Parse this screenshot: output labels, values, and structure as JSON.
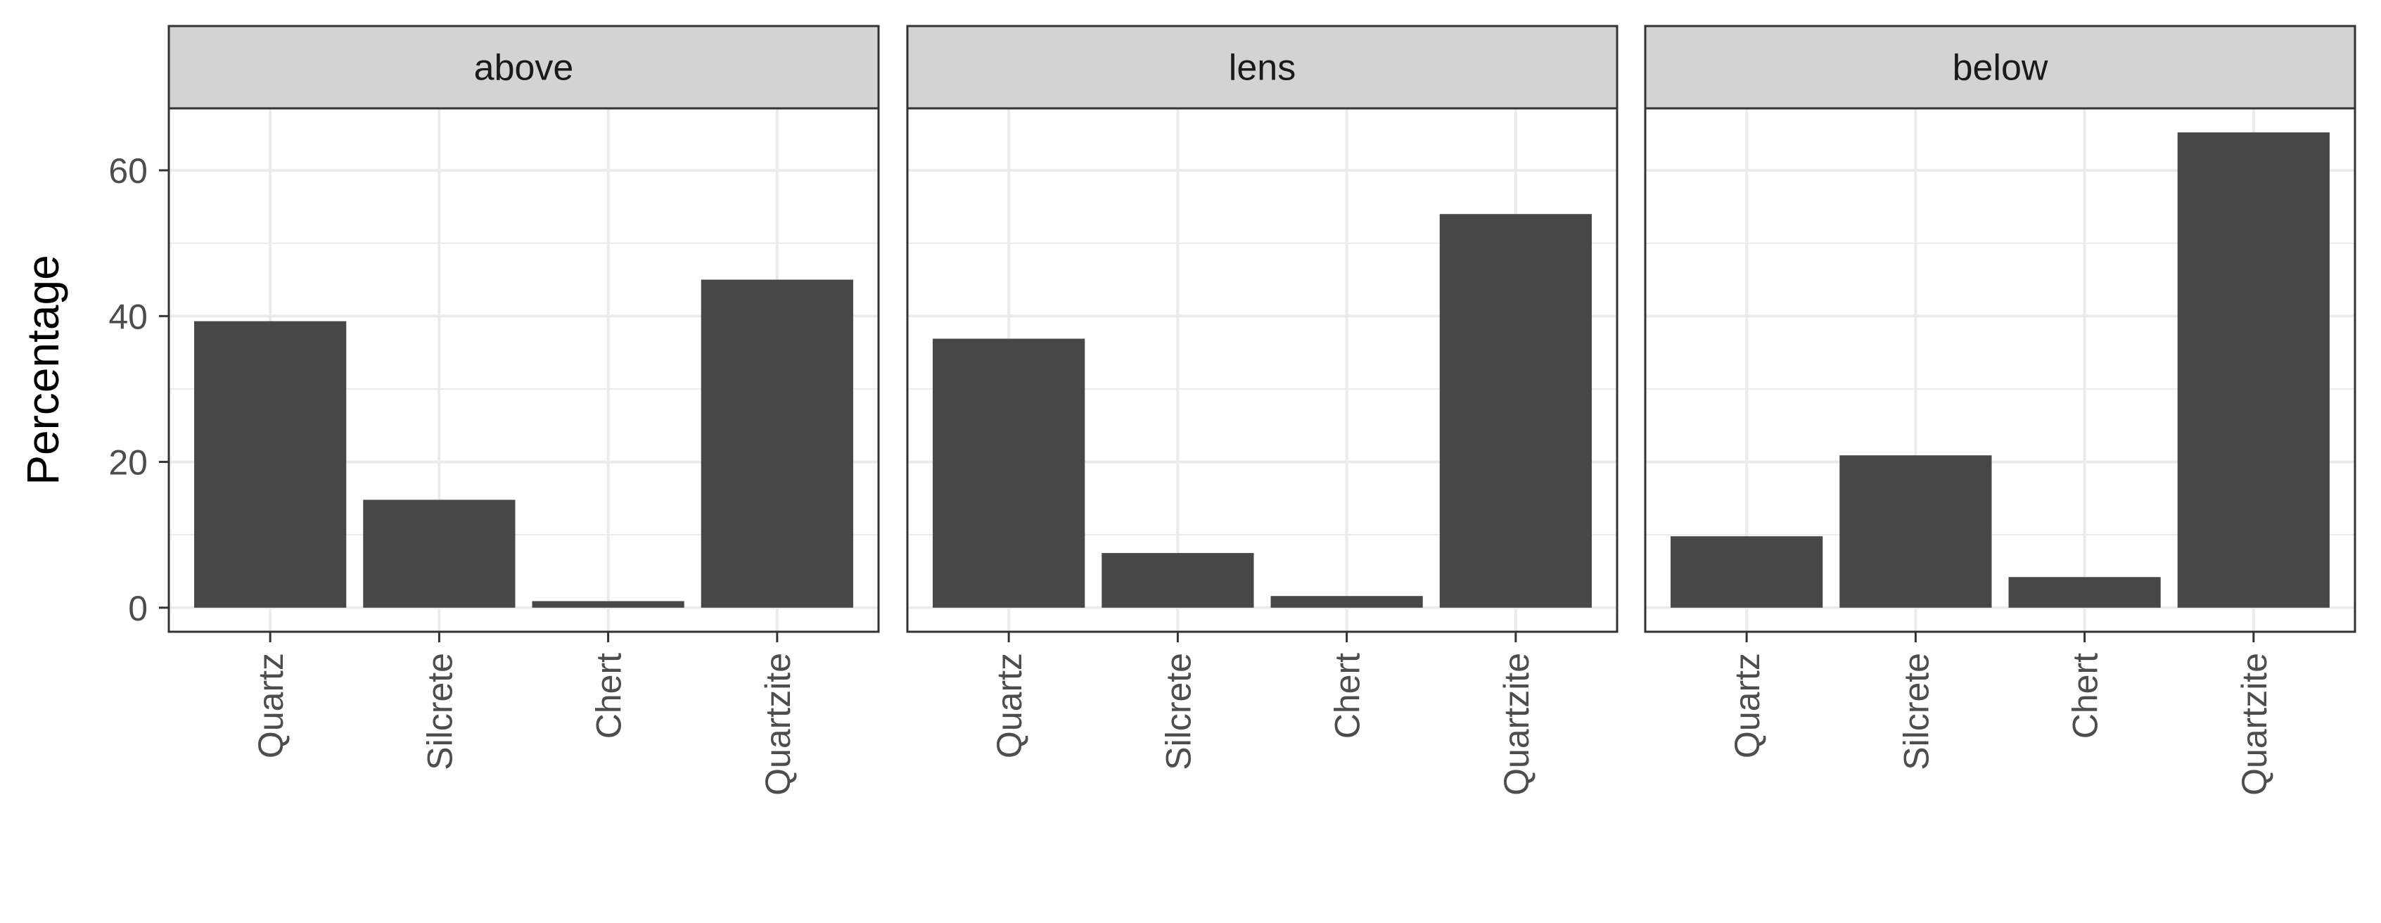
{
  "chart_data": {
    "type": "bar",
    "facets": [
      {
        "label": "above",
        "categories": [
          "Quartz",
          "Silcrete",
          "Chert",
          "Quartzite"
        ],
        "values": [
          39.3,
          14.8,
          0.9,
          45.0
        ]
      },
      {
        "label": "lens",
        "categories": [
          "Quartz",
          "Silcrete",
          "Chert",
          "Quartzite"
        ],
        "values": [
          36.9,
          7.5,
          1.6,
          54.0
        ]
      },
      {
        "label": "below",
        "categories": [
          "Quartz",
          "Silcrete",
          "Chert",
          "Quartzite"
        ],
        "values": [
          9.8,
          20.9,
          4.2,
          65.2
        ]
      }
    ],
    "ylabel": "Percentage",
    "xlabel": "",
    "ylim": [
      -3.3,
      68.5
    ],
    "yticks": [
      0,
      20,
      40,
      60
    ],
    "bar_color": "#474747",
    "strip_color": "#d3d3d3",
    "grid": true,
    "theme": "bw"
  }
}
